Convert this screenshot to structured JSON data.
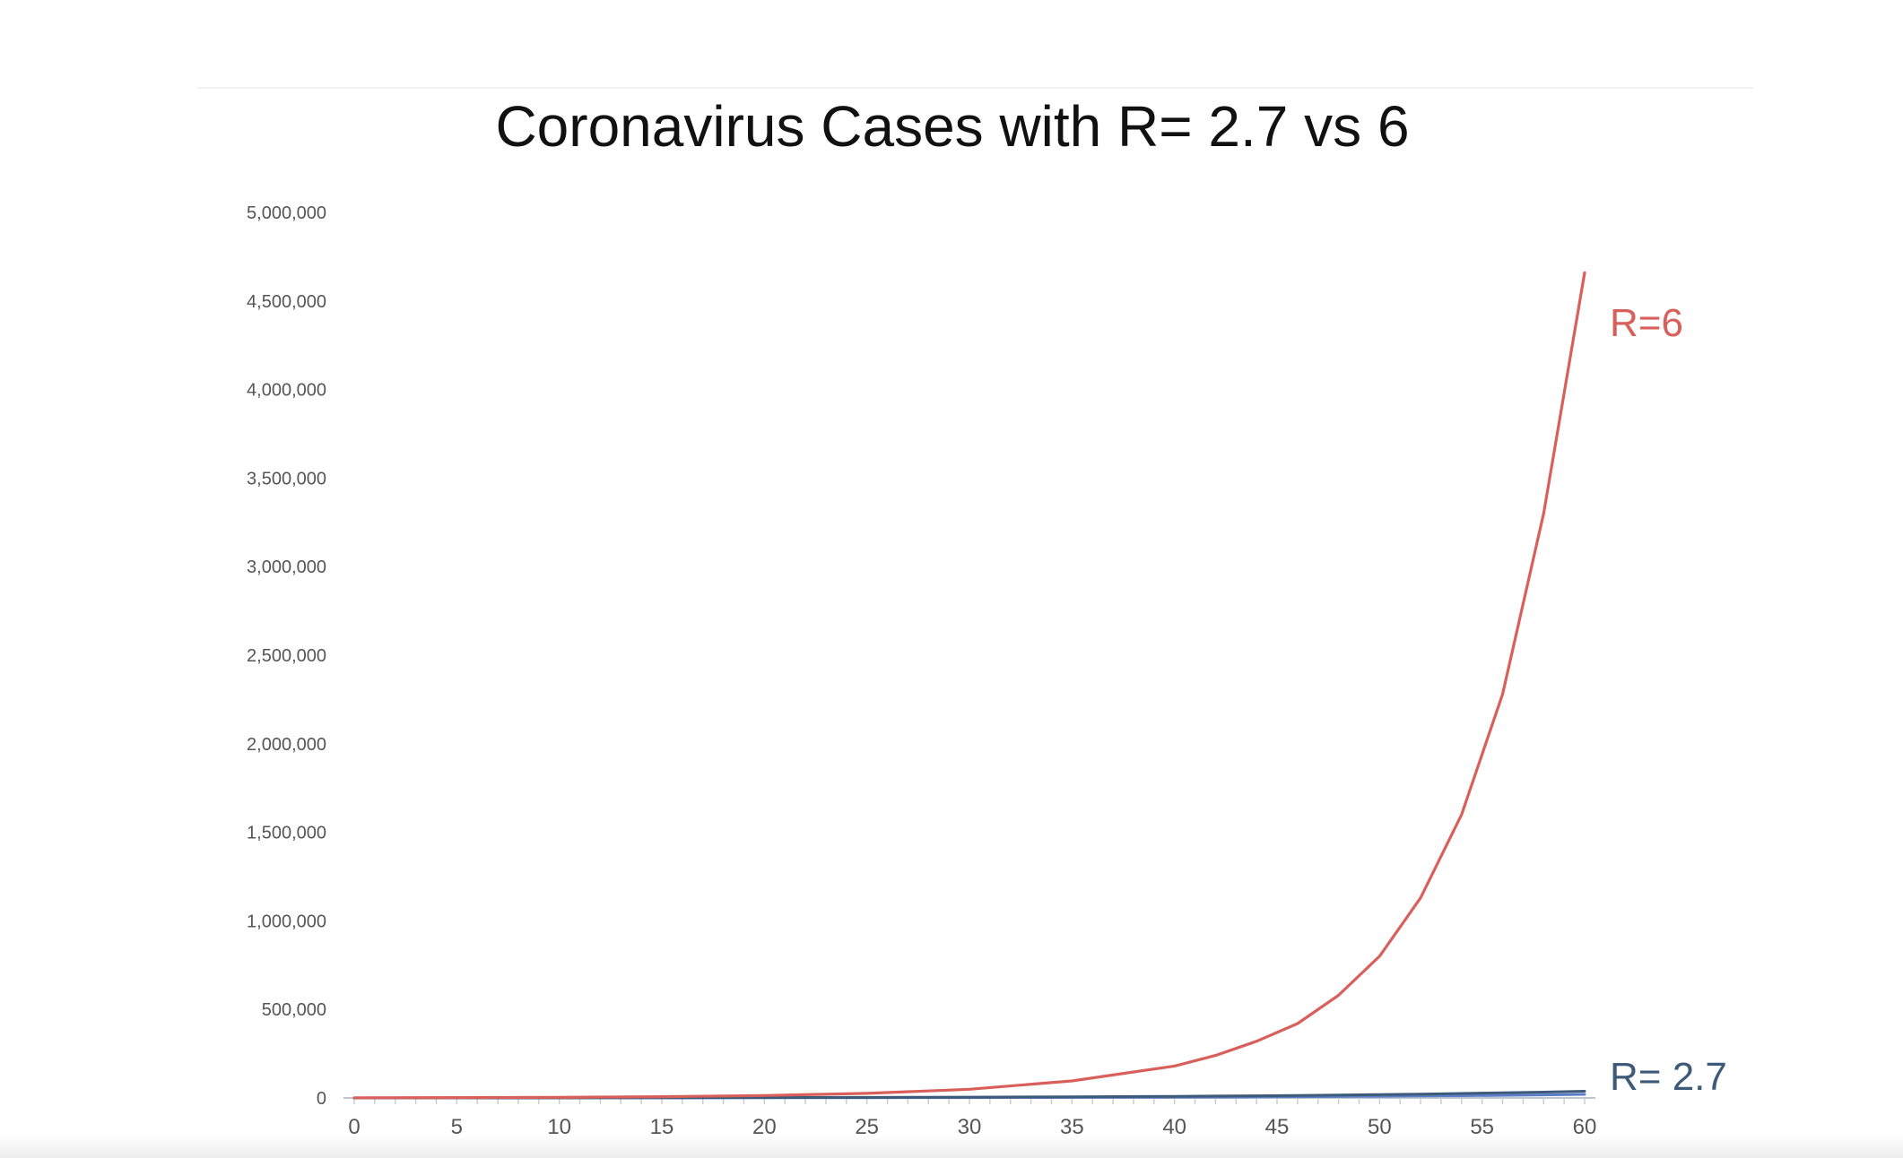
{
  "chart_data": {
    "type": "line",
    "title": "Coronavirus Cases with R= 2.7 vs 6",
    "xlabel": "",
    "ylabel": "",
    "xlim": [
      0,
      60
    ],
    "ylim": [
      0,
      5000000
    ],
    "x_ticks": [
      "0",
      "5",
      "10",
      "15",
      "20",
      "25",
      "30",
      "35",
      "40",
      "45",
      "50",
      "55",
      "60"
    ],
    "y_ticks": [
      "0",
      "500,000",
      "1,000,000",
      "1,500,000",
      "2,000,000",
      "2,500,000",
      "3,000,000",
      "3,500,000",
      "4,000,000",
      "4,500,000",
      "5,000,000"
    ],
    "grid": false,
    "x": [
      0,
      5,
      10,
      15,
      20,
      25,
      30,
      35,
      40,
      42,
      44,
      46,
      48,
      50,
      52,
      54,
      56,
      58,
      60
    ],
    "series": [
      {
        "name": "R=6",
        "color": "#d9605a",
        "values": [
          1000,
          1900,
          3700,
          7100,
          13600,
          26000,
          49000,
          96000,
          180000,
          240000,
          320000,
          420000,
          580000,
          800000,
          1130000,
          1600000,
          2280000,
          3300000,
          4660000
        ]
      },
      {
        "name": "R= 2.7",
        "color": "#3d5a78",
        "values": [
          0,
          200,
          600,
          1200,
          2000,
          3000,
          4500,
          6500,
          9000,
          10500,
          12000,
          14000,
          16500,
          19000,
          22000,
          25500,
          29000,
          33000,
          38000
        ]
      },
      {
        "name": "",
        "color": "#5b7ec7",
        "values": [
          0,
          100,
          300,
          600,
          1000,
          1500,
          2200,
          3200,
          4500,
          5200,
          6000,
          7000,
          8200,
          9500,
          11000,
          12800,
          14800,
          17000,
          20000
        ]
      }
    ]
  }
}
